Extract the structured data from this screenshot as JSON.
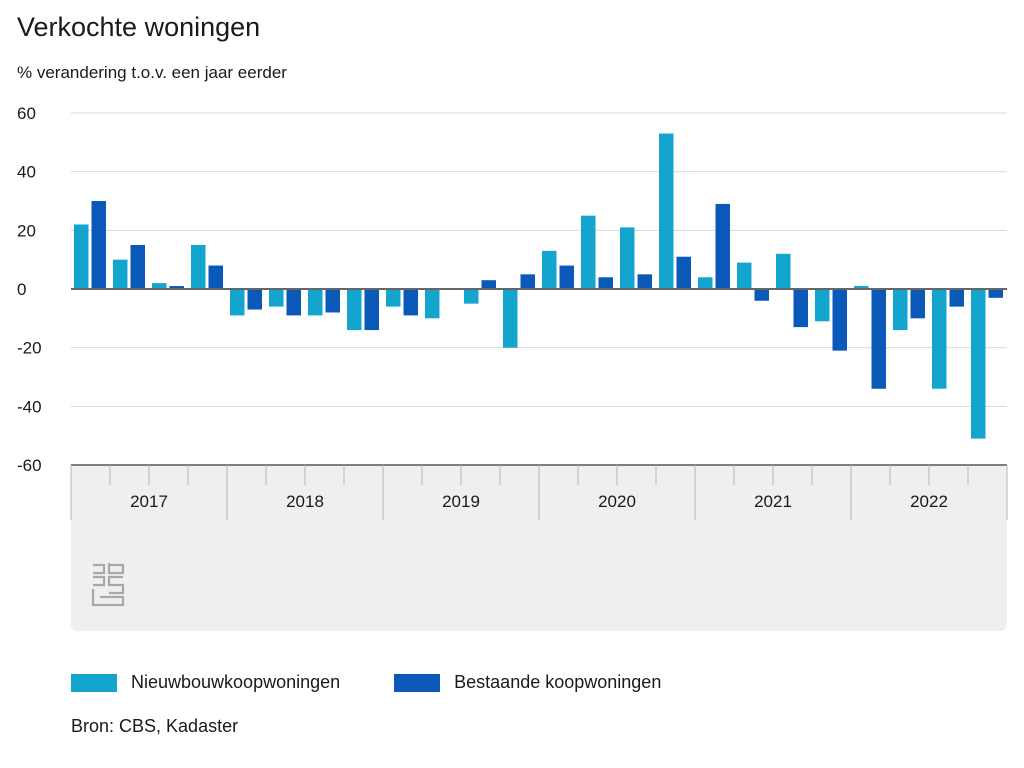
{
  "chart_data": {
    "type": "bar",
    "title": "Verkochte woningen",
    "subtitle": "% verandering t.o.v. een jaar eerder",
    "ylim": [
      -60,
      60
    ],
    "yticks": [
      60,
      40,
      20,
      0,
      -20,
      -40,
      -60
    ],
    "grid": true,
    "legend": "bottom-left",
    "years": [
      "2017",
      "2018",
      "2019",
      "2020",
      "2021",
      "2022"
    ],
    "categories": [
      "2017 K1",
      "2017 K2",
      "2017 K3",
      "2017 K4",
      "2018 K1",
      "2018 K2",
      "2018 K3",
      "2018 K4",
      "2019 K1",
      "2019 K2",
      "2019 K3",
      "2019 K4",
      "2020 K1",
      "2020 K2",
      "2020 K3",
      "2020 K4",
      "2021 K1",
      "2021 K2",
      "2021 K3",
      "2021 K4",
      "2022 K1",
      "2022 K2",
      "2022 K3",
      "2022 K4"
    ],
    "series": [
      {
        "name": "Nieuwbouwkoopwoningen",
        "color": "#14a5cf",
        "values": [
          22,
          10,
          2,
          15,
          -9,
          -6,
          -9,
          -14,
          -6,
          -10,
          -5,
          -20,
          13,
          25,
          21,
          53,
          4,
          9,
          12,
          -11,
          1,
          -14,
          -34,
          -51
        ]
      },
      {
        "name": "Bestaande koopwoningen",
        "color": "#0a58b8",
        "values": [
          30,
          15,
          1,
          8,
          -7,
          -9,
          -8,
          -14,
          -9,
          0,
          3,
          5,
          8,
          4,
          5,
          11,
          29,
          -4,
          -13,
          -21,
          -34,
          -10,
          -6,
          -3
        ]
      }
    ]
  },
  "legend": {
    "item1": "Nieuwbouwkoopwoningen",
    "item2": "Bestaande koopwoningen"
  },
  "source": "Bron: CBS, Kadaster",
  "logo_text": "cbs"
}
